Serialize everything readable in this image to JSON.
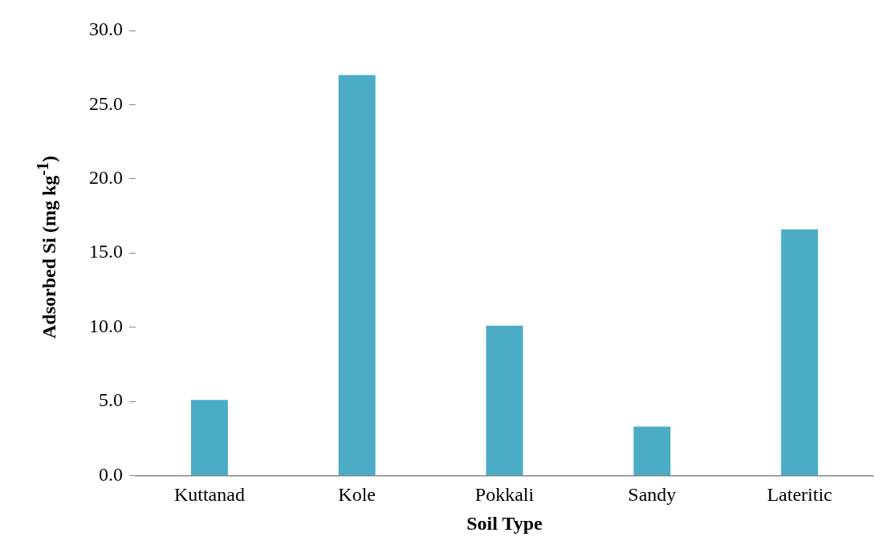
{
  "chart_data": {
    "type": "bar",
    "xlabel": "Soil Type",
    "ylabel": "Adsorbed Si (mg kg$^{-1}$)",
    "categories": [
      "Kuttanad",
      "Kole",
      "Pokkali",
      "Sandy",
      "Lateritic"
    ],
    "values": [
      5.1,
      27.0,
      10.1,
      3.3,
      16.6
    ],
    "color": "#4bacc6",
    "ylim": [
      0,
      30
    ],
    "yticks": [
      {
        "value": 0,
        "label": "0.0"
      },
      {
        "value": 5,
        "label": "5.0"
      },
      {
        "value": 10,
        "label": "10.0"
      },
      {
        "value": 15,
        "label": "15.0"
      },
      {
        "value": 20,
        "label": "20.0"
      },
      {
        "value": 25,
        "label": "25.0"
      },
      {
        "value": 30,
        "label": "30.0"
      }
    ]
  }
}
